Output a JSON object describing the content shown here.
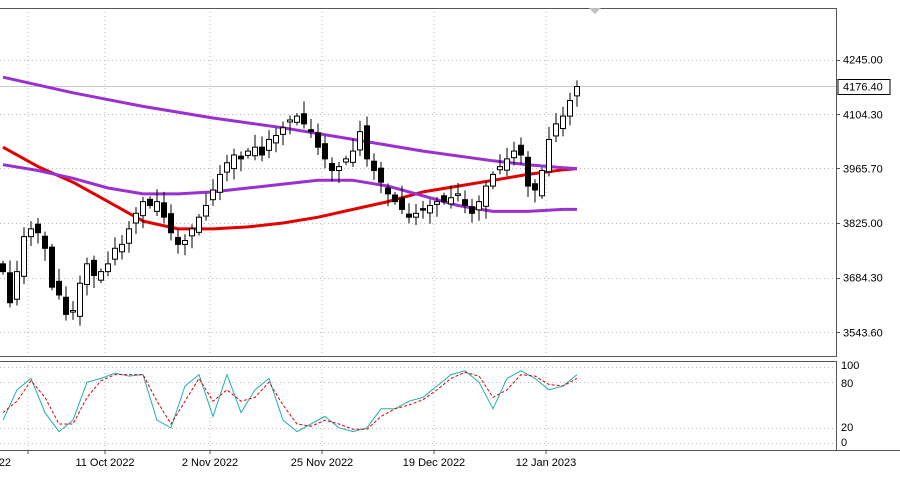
{
  "chart_data": [
    {
      "type": "candlestick",
      "title": "",
      "grid": true,
      "y_ticks": [
        "4245.00",
        "4104.30",
        "3965.70",
        "3825.00",
        "3684.30",
        "3543.60"
      ],
      "y_tick_values": [
        4245.0,
        4104.3,
        3965.7,
        3825.0,
        3684.3,
        3543.6
      ],
      "ylim": [
        3483,
        4378
      ],
      "current_price_label": "4176.40",
      "current_price": 4176.4,
      "x_ticks": [
        "22",
        "11 Oct 2022",
        "2 Nov 2022",
        "25 Nov 2022",
        "19 Dec 2022",
        "12 Jan 2023"
      ],
      "x_tick_index": [
        0,
        11,
        26,
        42,
        58,
        74
      ],
      "n_bars": 83,
      "closes": [
        3700,
        3620,
        3700,
        3790,
        3810,
        3800,
        3760,
        3660,
        3640,
        3590,
        3600,
        3670,
        3720,
        3690,
        3700,
        3720,
        3760,
        3770,
        3810,
        3850,
        3880,
        3870,
        3880,
        3840,
        3800,
        3770,
        3780,
        3810,
        3840,
        3870,
        3910,
        3950,
        3980,
        4000,
        3990,
        4010,
        4020,
        4000,
        4040,
        4050,
        4070,
        4090,
        4100,
        4080,
        4060,
        4020,
        3990,
        3960,
        3970,
        3990,
        4010,
        4060,
        3990,
        3960,
        3930,
        3900,
        3880,
        3860,
        3840,
        3850,
        3860,
        3870,
        3880,
        3880,
        3890,
        3900,
        3870,
        3850,
        3880,
        3920,
        3950,
        3970,
        3990,
        4010,
        4000,
        3920,
        3910,
        3960,
        4040,
        4080,
        4100,
        4140,
        4176
      ],
      "series": [
        {
          "name": "",
          "type": "line",
          "color": "#e00000",
          "x": [
            0,
            5,
            10,
            15,
            20,
            25,
            30,
            35,
            40,
            45,
            50,
            55,
            60,
            65,
            70,
            75,
            80,
            82
          ],
          "values": [
            4020,
            3970,
            3930,
            3880,
            3830,
            3810,
            3810,
            3815,
            3825,
            3840,
            3860,
            3880,
            3905,
            3920,
            3935,
            3950,
            3962,
            3965
          ]
        },
        {
          "name": "",
          "type": "line",
          "color": "#9b30d0",
          "x": [
            0,
            10,
            20,
            30,
            40,
            50,
            60,
            70,
            75,
            80,
            82
          ],
          "values": [
            4200,
            4160,
            4125,
            4095,
            4070,
            4040,
            4010,
            3985,
            3975,
            3967,
            3965
          ]
        },
        {
          "name": "",
          "type": "line",
          "color": "#9b30d0",
          "x": [
            0,
            5,
            10,
            15,
            20,
            25,
            30,
            35,
            40,
            45,
            50,
            55,
            60,
            65,
            70,
            75,
            80,
            82
          ],
          "values": [
            3975,
            3960,
            3940,
            3915,
            3900,
            3900,
            3905,
            3915,
            3925,
            3935,
            3935,
            3920,
            3895,
            3870,
            3855,
            3855,
            3860,
            3860
          ]
        }
      ]
    },
    {
      "type": "line",
      "title": "",
      "y_ticks": [
        "100",
        "80",
        "20",
        "0"
      ],
      "y_tick_values": [
        100,
        80,
        20,
        0
      ],
      "ylim": [
        0,
        100
      ],
      "series": [
        {
          "name": "",
          "color": "#20b0b0",
          "dash": false,
          "x": [
            0,
            2,
            4,
            6,
            8,
            10,
            12,
            14,
            16,
            18,
            20,
            22,
            24,
            26,
            28,
            30,
            32,
            34,
            36,
            38,
            40,
            42,
            44,
            46,
            48,
            50,
            52,
            54,
            56,
            58,
            60,
            62,
            64,
            66,
            68,
            70,
            72,
            74,
            76,
            78,
            80,
            82
          ],
          "values": [
            30,
            70,
            85,
            40,
            15,
            30,
            80,
            85,
            92,
            88,
            90,
            30,
            20,
            75,
            90,
            35,
            90,
            40,
            70,
            85,
            30,
            15,
            25,
            35,
            20,
            15,
            20,
            45,
            45,
            55,
            60,
            75,
            90,
            95,
            80,
            45,
            85,
            95,
            85,
            70,
            75,
            90
          ]
        },
        {
          "name": "",
          "color": "#e00000",
          "dash": true,
          "x": [
            0,
            2,
            4,
            6,
            8,
            10,
            12,
            14,
            16,
            18,
            20,
            22,
            24,
            26,
            28,
            30,
            32,
            34,
            36,
            38,
            40,
            42,
            44,
            46,
            48,
            50,
            52,
            54,
            56,
            58,
            60,
            62,
            64,
            66,
            68,
            70,
            72,
            74,
            76,
            78,
            80,
            82
          ],
          "values": [
            40,
            55,
            82,
            60,
            25,
            25,
            60,
            82,
            90,
            90,
            90,
            55,
            25,
            55,
            85,
            55,
            70,
            55,
            60,
            80,
            50,
            25,
            22,
            30,
            25,
            18,
            18,
            35,
            45,
            50,
            57,
            70,
            85,
            93,
            88,
            60,
            70,
            90,
            88,
            77,
            75,
            85
          ]
        }
      ]
    }
  ]
}
